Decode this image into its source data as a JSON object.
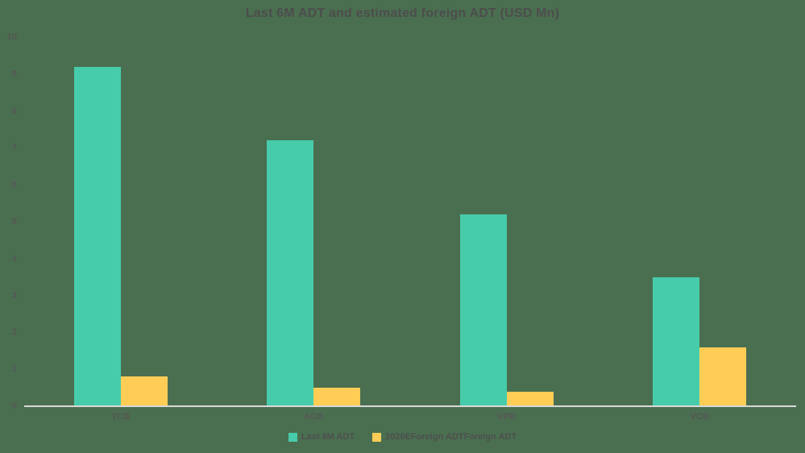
{
  "chart_data": {
    "type": "bar",
    "title": "Last 6M ADT and estimated foreign ADT (USD Mn)",
    "categories": [
      "TCB",
      "ACB",
      "VPB",
      "VCB"
    ],
    "series": [
      {
        "name": "Last 6M ADT",
        "color": "#47ccab",
        "values": [
          9.2,
          7.2,
          5.2,
          3.5
        ]
      },
      {
        "name": "2020EForeign ADTForeign ADT",
        "color": "#ffcd55",
        "values": [
          0.8,
          0.5,
          0.4,
          1.6
        ]
      }
    ],
    "xlabel": "",
    "ylabel": "",
    "ylim": [
      0,
      10
    ],
    "yticks": [
      0,
      1,
      2,
      3,
      4,
      5,
      6,
      7,
      8,
      9,
      10
    ],
    "grid": false,
    "legend_position": "bottom",
    "colors": {
      "background": "#4a6f50",
      "bar_series_1": "#47ccab",
      "bar_series_2": "#ffcd55",
      "title_text": "#4d4d4d",
      "tick_text": "#565656",
      "axis_line": "#d9d9d9"
    }
  }
}
